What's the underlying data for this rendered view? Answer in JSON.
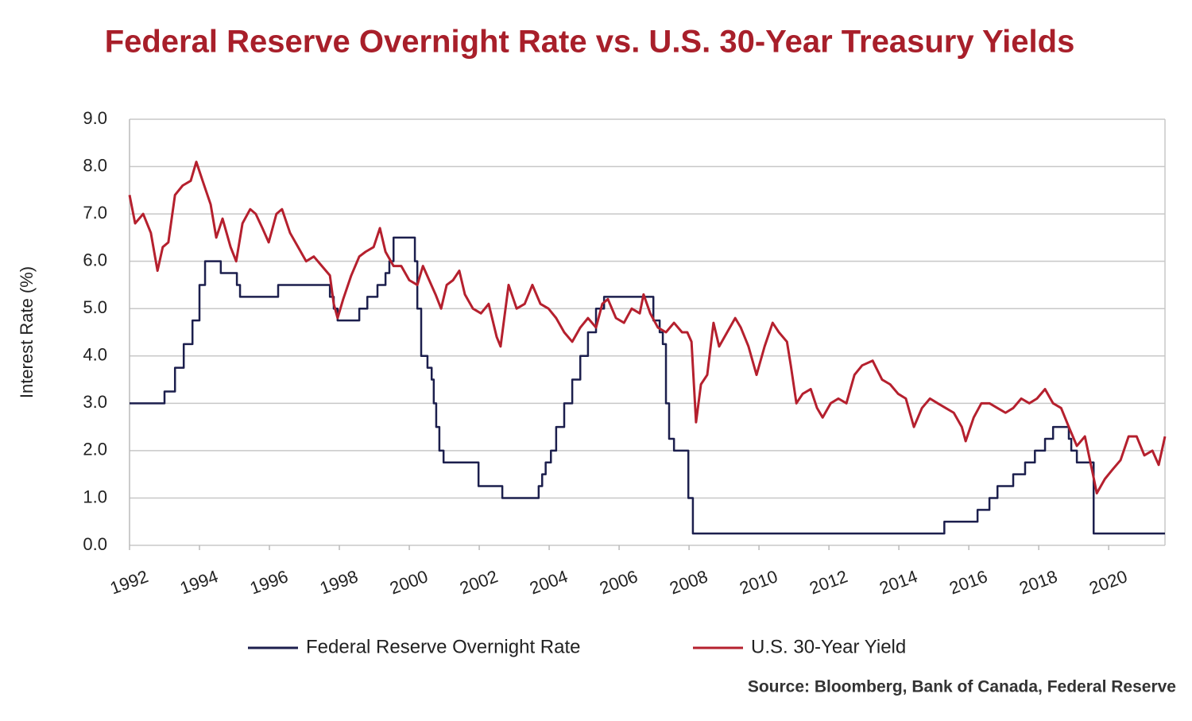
{
  "chart_data": {
    "type": "line",
    "title": "Federal Reserve Overnight Rate vs. U.S. 30-Year Treasury Yields",
    "y_label": "Interest Rate (%)",
    "source": "Source: Bloomberg, Bank of Canada, Federal Reserve",
    "xlim": [
      1992,
      2021.61
    ],
    "xticks": [
      1992,
      1994,
      1996,
      1998,
      2000,
      2002,
      2004,
      2006,
      2008,
      2010,
      2012,
      2014,
      2016,
      2018,
      2020
    ],
    "ylim": [
      0,
      9
    ],
    "yticks": [
      {
        "value": 0,
        "label": "0.0"
      },
      {
        "value": 1,
        "label": "1.0"
      },
      {
        "value": 2,
        "label": "2.0"
      },
      {
        "value": 3,
        "label": "3.0"
      },
      {
        "value": 4,
        "label": "4.0"
      },
      {
        "value": 5,
        "label": "5.0"
      },
      {
        "value": 6,
        "label": "6.0"
      },
      {
        "value": 7,
        "label": "7.0"
      },
      {
        "value": 8,
        "label": "8.0"
      },
      {
        "value": 9,
        "label": "9.0"
      }
    ],
    "grid": true,
    "legend": "bottom",
    "series": [
      {
        "name": "Federal Reserve Overnight Rate",
        "color": "#1c1f4d",
        "x": [
          1992.0,
          1993.0,
          1993.0,
          1993.3,
          1993.3,
          1993.55,
          1993.55,
          1993.8,
          1993.8,
          1994.0,
          1994.0,
          1994.16,
          1994.16,
          1994.61,
          1994.61,
          1995.07,
          1995.07,
          1995.16,
          1995.16,
          1996.25,
          1996.25,
          1997.73,
          1997.73,
          1997.84,
          1997.84,
          1997.95,
          1997.95,
          1998.57,
          1998.57,
          1998.8,
          1998.8,
          1999.09,
          1999.09,
          1999.32,
          1999.32,
          1999.43,
          1999.43,
          1999.55,
          1999.55,
          2000.16,
          2000.16,
          2000.23,
          2000.23,
          2000.34,
          2000.34,
          2000.52,
          2000.52,
          2000.64,
          2000.64,
          2000.7,
          2000.7,
          2000.77,
          2000.77,
          2000.86,
          2000.86,
          2000.98,
          2000.98,
          2001.98,
          2001.98,
          2002.66,
          2002.66,
          2003.7,
          2003.7,
          2003.8,
          2003.8,
          2003.9,
          2003.9,
          2004.05,
          2004.05,
          2004.2,
          2004.2,
          2004.43,
          2004.43,
          2004.66,
          2004.66,
          2004.89,
          2004.89,
          2005.11,
          2005.11,
          2005.34,
          2005.34,
          2005.57,
          2005.57,
          2006.98,
          2006.98,
          2007.16,
          2007.16,
          2007.25,
          2007.25,
          2007.34,
          2007.34,
          2007.43,
          2007.43,
          2007.57,
          2007.57,
          2007.98,
          2007.98,
          2008.11,
          2008.11,
          2015.3,
          2015.3,
          2016.25,
          2016.25,
          2016.59,
          2016.59,
          2016.82,
          2016.82,
          2017.27,
          2017.27,
          2017.61,
          2017.61,
          2017.89,
          2017.89,
          2018.18,
          2018.18,
          2018.41,
          2018.41,
          2018.86,
          2018.86,
          2018.93,
          2018.93,
          2019.09,
          2019.09,
          2019.57,
          2019.57,
          2021.61
        ],
        "values": [
          3.0,
          3.0,
          3.25,
          3.25,
          3.75,
          3.75,
          4.25,
          4.25,
          4.75,
          4.75,
          5.5,
          5.5,
          6.0,
          6.0,
          5.75,
          5.75,
          5.5,
          5.5,
          5.25,
          5.25,
          5.5,
          5.5,
          5.25,
          5.25,
          5.0,
          5.0,
          4.75,
          4.75,
          5.0,
          5.0,
          5.25,
          5.25,
          5.5,
          5.5,
          5.75,
          5.75,
          6.0,
          6.0,
          6.5,
          6.5,
          6.0,
          6.0,
          5.0,
          5.0,
          4.0,
          4.0,
          3.75,
          3.75,
          3.5,
          3.5,
          3.0,
          3.0,
          2.5,
          2.5,
          2.0,
          2.0,
          1.75,
          1.75,
          1.25,
          1.25,
          1.0,
          1.0,
          1.25,
          1.25,
          1.5,
          1.5,
          1.75,
          1.75,
          2.0,
          2.0,
          2.5,
          2.5,
          3.0,
          3.0,
          3.5,
          3.5,
          4.0,
          4.0,
          4.5,
          4.5,
          5.0,
          5.0,
          5.25,
          5.25,
          4.75,
          4.75,
          4.5,
          4.5,
          4.25,
          4.25,
          3.0,
          3.0,
          2.25,
          2.25,
          2.0,
          2.0,
          1.0,
          1.0,
          0.25,
          0.25,
          0.5,
          0.5,
          0.75,
          0.75,
          1.0,
          1.0,
          1.25,
          1.25,
          1.5,
          1.5,
          1.75,
          1.75,
          2.0,
          2.0,
          2.25,
          2.25,
          2.5,
          2.5,
          2.25,
          2.25,
          2.0,
          2.0,
          1.75,
          1.75,
          0.25,
          0.25
        ]
      },
      {
        "name": "U.S. 30-Year Yield",
        "color": "#b5202e",
        "x": [
          1992.0,
          1992.16,
          1992.39,
          1992.61,
          1992.8,
          1992.95,
          1993.11,
          1993.3,
          1993.52,
          1993.75,
          1993.91,
          1994.09,
          1994.32,
          1994.48,
          1994.66,
          1994.89,
          1995.05,
          1995.23,
          1995.45,
          1995.61,
          1995.8,
          1995.98,
          1996.2,
          1996.36,
          1996.59,
          1996.82,
          1997.05,
          1997.27,
          1997.5,
          1997.73,
          1997.84,
          1997.95,
          1998.11,
          1998.34,
          1998.57,
          1998.75,
          1998.98,
          1999.16,
          1999.32,
          1999.55,
          1999.77,
          2000.0,
          2000.23,
          2000.39,
          2000.57,
          2000.75,
          2000.91,
          2001.07,
          2001.25,
          2001.43,
          2001.59,
          2001.82,
          2002.05,
          2002.27,
          2002.5,
          2002.61,
          2002.84,
          2003.07,
          2003.3,
          2003.52,
          2003.75,
          2003.98,
          2004.2,
          2004.43,
          2004.66,
          2004.89,
          2005.11,
          2005.34,
          2005.52,
          2005.68,
          2005.91,
          2006.14,
          2006.36,
          2006.59,
          2006.7,
          2006.89,
          2007.11,
          2007.34,
          2007.57,
          2007.8,
          2007.95,
          2008.07,
          2008.2,
          2008.34,
          2008.52,
          2008.7,
          2008.86,
          2009.09,
          2009.32,
          2009.48,
          2009.7,
          2009.93,
          2010.16,
          2010.39,
          2010.57,
          2010.8,
          2010.91,
          2011.07,
          2011.25,
          2011.48,
          2011.66,
          2011.82,
          2012.05,
          2012.27,
          2012.5,
          2012.73,
          2012.95,
          2013.25,
          2013.52,
          2013.75,
          2013.98,
          2014.2,
          2014.43,
          2014.66,
          2014.89,
          2015.11,
          2015.34,
          2015.57,
          2015.8,
          2015.91,
          2016.14,
          2016.36,
          2016.59,
          2016.82,
          2017.05,
          2017.27,
          2017.5,
          2017.73,
          2017.95,
          2018.18,
          2018.41,
          2018.64,
          2018.86,
          2019.09,
          2019.32,
          2019.55,
          2019.66,
          2019.89,
          2020.11,
          2020.34,
          2020.57,
          2020.8,
          2021.02,
          2021.25,
          2021.43,
          2021.61
        ],
        "values": [
          7.4,
          6.8,
          7.0,
          6.6,
          5.8,
          6.3,
          6.4,
          7.4,
          7.6,
          7.7,
          8.1,
          7.7,
          7.2,
          6.5,
          6.9,
          6.3,
          6.0,
          6.8,
          7.1,
          7.0,
          6.7,
          6.4,
          7.0,
          7.1,
          6.6,
          6.3,
          6.0,
          6.1,
          5.9,
          5.7,
          5.1,
          4.8,
          5.2,
          5.7,
          6.1,
          6.2,
          6.3,
          6.7,
          6.2,
          5.9,
          5.9,
          5.6,
          5.5,
          5.9,
          5.6,
          5.3,
          5.0,
          5.5,
          5.6,
          5.8,
          5.3,
          5.0,
          4.9,
          5.1,
          4.4,
          4.2,
          5.5,
          5.0,
          5.1,
          5.5,
          5.1,
          5.0,
          4.8,
          4.5,
          4.3,
          4.6,
          4.8,
          4.6,
          5.1,
          5.2,
          4.8,
          4.7,
          5.0,
          4.9,
          5.3,
          4.9,
          4.6,
          4.5,
          4.7,
          4.5,
          4.5,
          4.3,
          2.6,
          3.4,
          3.6,
          4.7,
          4.2,
          4.5,
          4.8,
          4.6,
          4.2,
          3.6,
          4.2,
          4.7,
          4.5,
          4.3,
          3.8,
          3.0,
          3.2,
          3.3,
          2.9,
          2.7,
          3.0,
          3.1,
          3.0,
          3.6,
          3.8,
          3.9,
          3.5,
          3.4,
          3.2,
          3.1,
          2.5,
          2.9,
          3.1,
          3.0,
          2.9,
          2.8,
          2.5,
          2.2,
          2.7,
          3.0,
          3.0,
          2.9,
          2.8,
          2.9,
          3.1,
          3.0,
          3.1,
          3.3,
          3.0,
          2.9,
          2.5,
          2.1,
          2.3,
          1.5,
          1.1,
          1.4,
          1.6,
          1.8,
          2.3,
          2.3,
          1.9,
          2.0,
          1.7,
          2.3
        ]
      }
    ]
  }
}
